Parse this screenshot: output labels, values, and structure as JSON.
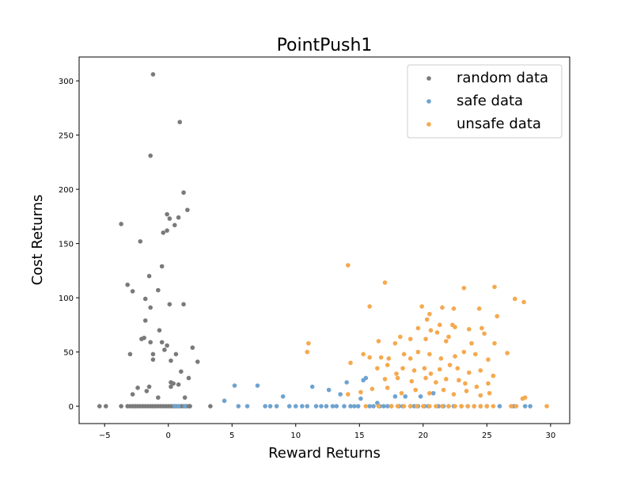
{
  "chart_data": {
    "type": "scatter",
    "title": "PointPush1",
    "xlabel": "Reward Returns",
    "ylabel": "Cost Returns",
    "xlim": [
      -7,
      31.5
    ],
    "ylim": [
      -16,
      322
    ],
    "xticks": [
      -5,
      0,
      5,
      10,
      15,
      20,
      25,
      30
    ],
    "yticks": [
      0,
      50,
      100,
      150,
      200,
      250,
      300
    ],
    "xtick_labels": [
      "−5",
      "0",
      "5",
      "10",
      "15",
      "20",
      "25",
      "30"
    ],
    "ytick_labels": [
      "0",
      "50",
      "100",
      "150",
      "200",
      "250",
      "300"
    ],
    "grid": false,
    "legend_position": "top-right",
    "series": [
      {
        "name": "random data",
        "color": "#7a7a7a",
        "points": [
          [
            -5.4,
            0
          ],
          [
            -4.9,
            0
          ],
          [
            -3.7,
            0
          ],
          [
            -3.2,
            0
          ],
          [
            -3.0,
            0
          ],
          [
            -2.8,
            0
          ],
          [
            -2.6,
            0
          ],
          [
            -2.4,
            0
          ],
          [
            -2.2,
            0
          ],
          [
            -2.0,
            0
          ],
          [
            -1.8,
            0
          ],
          [
            -1.6,
            0
          ],
          [
            -1.4,
            0
          ],
          [
            -1.2,
            0
          ],
          [
            -1.0,
            0
          ],
          [
            -0.8,
            0
          ],
          [
            -0.6,
            0
          ],
          [
            -0.4,
            0
          ],
          [
            -0.2,
            0
          ],
          [
            0.0,
            0
          ],
          [
            0.2,
            0
          ],
          [
            0.4,
            0
          ],
          [
            0.6,
            0
          ],
          [
            0.8,
            0
          ],
          [
            1.0,
            0
          ],
          [
            1.2,
            0
          ],
          [
            1.4,
            0
          ],
          [
            1.6,
            0
          ],
          [
            1.7,
            0
          ],
          [
            3.3,
            0
          ],
          [
            -1.2,
            306
          ],
          [
            0.9,
            262
          ],
          [
            -1.4,
            231
          ],
          [
            1.2,
            197
          ],
          [
            1.5,
            181
          ],
          [
            -0.1,
            177
          ],
          [
            0.1,
            173
          ],
          [
            0.8,
            174
          ],
          [
            0.5,
            167
          ],
          [
            -0.1,
            162
          ],
          [
            -0.4,
            160
          ],
          [
            -3.7,
            168
          ],
          [
            -2.2,
            152
          ],
          [
            -0.5,
            129
          ],
          [
            -3.2,
            112
          ],
          [
            -1.5,
            120
          ],
          [
            -2.8,
            106
          ],
          [
            -0.8,
            107
          ],
          [
            -1.8,
            99
          ],
          [
            -1.4,
            91
          ],
          [
            0.1,
            94
          ],
          [
            1.2,
            94
          ],
          [
            -1.8,
            79
          ],
          [
            -0.7,
            70
          ],
          [
            -2.1,
            62
          ],
          [
            -1.9,
            63
          ],
          [
            -1.4,
            59
          ],
          [
            -0.5,
            59
          ],
          [
            -1.2,
            48
          ],
          [
            -1.2,
            43
          ],
          [
            -3.0,
            48
          ],
          [
            -0.3,
            52
          ],
          [
            -0.1,
            56
          ],
          [
            0.2,
            42
          ],
          [
            0.6,
            48
          ],
          [
            1.9,
            54
          ],
          [
            2.3,
            41
          ],
          [
            1.0,
            32
          ],
          [
            1.6,
            26
          ],
          [
            0.4,
            21
          ],
          [
            0.2,
            22
          ],
          [
            0.8,
            20
          ],
          [
            0.2,
            18
          ],
          [
            -1.5,
            18
          ],
          [
            -2.4,
            17
          ],
          [
            -1.7,
            14
          ],
          [
            -2.8,
            11
          ],
          [
            -0.8,
            8
          ],
          [
            1.3,
            8
          ]
        ]
      },
      {
        "name": "safe data",
        "color": "#6fa3cf",
        "points": [
          [
            0.5,
            0
          ],
          [
            0.8,
            0
          ],
          [
            1.3,
            0
          ],
          [
            4.4,
            5
          ],
          [
            5.2,
            19
          ],
          [
            5.5,
            0
          ],
          [
            6.2,
            0
          ],
          [
            7.0,
            19
          ],
          [
            7.6,
            0
          ],
          [
            8.0,
            0
          ],
          [
            8.5,
            0
          ],
          [
            9.0,
            9
          ],
          [
            9.5,
            0
          ],
          [
            10.0,
            0
          ],
          [
            10.5,
            0
          ],
          [
            10.9,
            0
          ],
          [
            11.3,
            18
          ],
          [
            11.6,
            0
          ],
          [
            12.0,
            0
          ],
          [
            12.4,
            0
          ],
          [
            12.6,
            15
          ],
          [
            12.9,
            0
          ],
          [
            13.2,
            0
          ],
          [
            13.5,
            11
          ],
          [
            13.8,
            0
          ],
          [
            14.0,
            22
          ],
          [
            14.3,
            0
          ],
          [
            14.6,
            0
          ],
          [
            14.9,
            0
          ],
          [
            15.1,
            7
          ],
          [
            15.3,
            24
          ],
          [
            15.5,
            26
          ],
          [
            15.8,
            0
          ],
          [
            16.1,
            0
          ],
          [
            16.4,
            3
          ],
          [
            16.6,
            0
          ],
          [
            16.9,
            0
          ],
          [
            17.2,
            0
          ],
          [
            17.5,
            0
          ],
          [
            17.8,
            9
          ],
          [
            18.1,
            0
          ],
          [
            18.4,
            0
          ],
          [
            18.6,
            9
          ],
          [
            19.0,
            0
          ],
          [
            19.3,
            0
          ],
          [
            19.6,
            0
          ],
          [
            19.8,
            9
          ],
          [
            20.1,
            0
          ],
          [
            20.4,
            0
          ],
          [
            20.8,
            12
          ],
          [
            21.2,
            0
          ],
          [
            21.6,
            0
          ],
          [
            22.0,
            0
          ],
          [
            22.4,
            0
          ],
          [
            23.0,
            0
          ],
          [
            23.5,
            0
          ],
          [
            24.0,
            0
          ],
          [
            24.5,
            0
          ],
          [
            25.0,
            0
          ],
          [
            26.0,
            0
          ],
          [
            27.1,
            0
          ],
          [
            28.0,
            0
          ],
          [
            28.4,
            0
          ]
        ]
      },
      {
        "name": "unsafe data",
        "color": "#f5a94e",
        "points": [
          [
            14.1,
            130
          ],
          [
            17.0,
            114
          ],
          [
            15.8,
            92
          ],
          [
            23.2,
            109
          ],
          [
            25.6,
            110
          ],
          [
            27.2,
            99
          ],
          [
            27.9,
            96
          ],
          [
            19.9,
            92
          ],
          [
            20.5,
            85
          ],
          [
            21.5,
            91
          ],
          [
            22.4,
            90
          ],
          [
            24.4,
            90
          ],
          [
            25.8,
            83
          ],
          [
            20.3,
            80
          ],
          [
            21.3,
            75
          ],
          [
            22.3,
            75
          ],
          [
            22.5,
            73
          ],
          [
            23.6,
            71
          ],
          [
            24.6,
            72
          ],
          [
            19.6,
            72
          ],
          [
            20.6,
            70
          ],
          [
            21.1,
            68
          ],
          [
            24.8,
            67
          ],
          [
            22.0,
            64
          ],
          [
            18.2,
            64
          ],
          [
            17.8,
            58
          ],
          [
            16.5,
            60
          ],
          [
            19.0,
            62
          ],
          [
            20.2,
            62
          ],
          [
            21.8,
            60
          ],
          [
            11.0,
            58
          ],
          [
            23.8,
            58
          ],
          [
            25.6,
            58
          ],
          [
            10.9,
            50
          ],
          [
            14.3,
            40
          ],
          [
            15.3,
            48
          ],
          [
            15.8,
            45
          ],
          [
            16.7,
            45
          ],
          [
            17.3,
            44
          ],
          [
            18.5,
            48
          ],
          [
            19.0,
            44
          ],
          [
            19.6,
            50
          ],
          [
            20.5,
            48
          ],
          [
            21.4,
            44
          ],
          [
            22.5,
            46
          ],
          [
            23.2,
            50
          ],
          [
            24.1,
            48
          ],
          [
            25.1,
            43
          ],
          [
            26.6,
            49
          ],
          [
            16.4,
            35
          ],
          [
            17.2,
            38
          ],
          [
            17.9,
            30
          ],
          [
            18.4,
            35
          ],
          [
            19.3,
            33
          ],
          [
            20.1,
            35
          ],
          [
            20.6,
            30
          ],
          [
            21.3,
            34
          ],
          [
            22.1,
            38
          ],
          [
            22.7,
            35
          ],
          [
            23.6,
            31
          ],
          [
            24.5,
            33
          ],
          [
            25.5,
            28
          ],
          [
            17.0,
            25
          ],
          [
            18.0,
            26
          ],
          [
            19.1,
            23
          ],
          [
            20.2,
            26
          ],
          [
            21.0,
            22
          ],
          [
            21.8,
            25
          ],
          [
            22.8,
            24
          ],
          [
            23.3,
            21
          ],
          [
            24.2,
            18
          ],
          [
            25.1,
            21
          ],
          [
            14.1,
            11
          ],
          [
            15.1,
            13
          ],
          [
            16.0,
            16
          ],
          [
            17.2,
            17
          ],
          [
            18.3,
            12
          ],
          [
            19.4,
            15
          ],
          [
            20.5,
            12
          ],
          [
            21.6,
            15
          ],
          [
            22.4,
            11
          ],
          [
            23.4,
            14
          ],
          [
            24.5,
            10
          ],
          [
            25.2,
            12
          ],
          [
            27.8,
            7
          ],
          [
            28.0,
            8
          ],
          [
            15.5,
            0
          ],
          [
            16.5,
            0
          ],
          [
            17.5,
            0
          ],
          [
            18.0,
            0
          ],
          [
            18.5,
            0
          ],
          [
            19.0,
            0
          ],
          [
            19.5,
            0
          ],
          [
            20.0,
            0
          ],
          [
            20.5,
            0
          ],
          [
            21.0,
            0
          ],
          [
            21.5,
            0
          ],
          [
            22.0,
            0
          ],
          [
            22.5,
            0
          ],
          [
            23.0,
            0
          ],
          [
            23.5,
            0
          ],
          [
            24.0,
            0
          ],
          [
            24.5,
            0
          ],
          [
            25.0,
            0
          ],
          [
            25.5,
            0
          ],
          [
            26.9,
            0
          ],
          [
            27.3,
            0
          ],
          [
            29.7,
            0
          ]
        ]
      }
    ]
  }
}
